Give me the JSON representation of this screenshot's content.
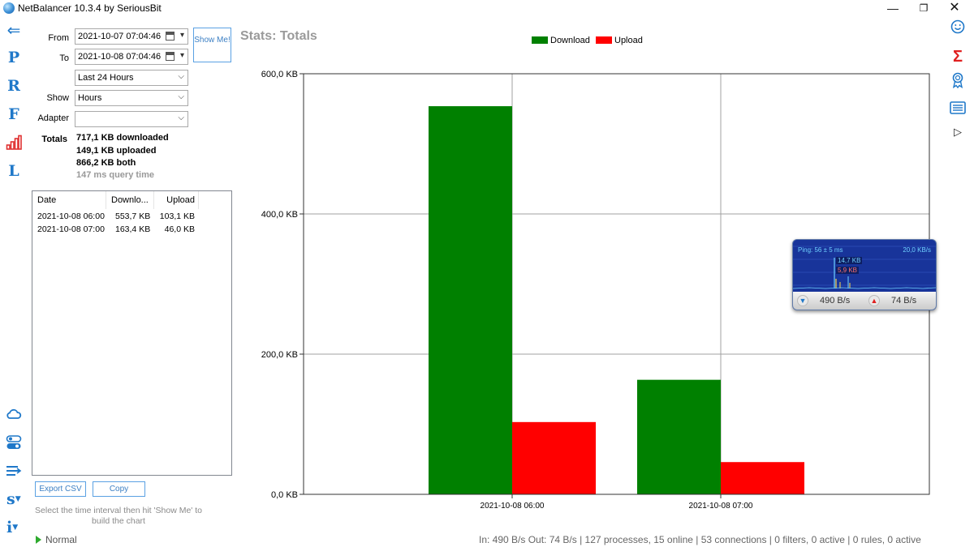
{
  "window": {
    "title": "NetBalancer 10.3.4 by SeriousBit",
    "minimize_glyph": "—",
    "maximize_glyph": "❐",
    "close_glyph": "✕"
  },
  "left_rail": {
    "items": [
      {
        "icon": "back-arrow-icon",
        "glyph": "⇐"
      },
      {
        "icon": "letter-p-icon",
        "glyph": "P"
      },
      {
        "icon": "letter-r-icon",
        "glyph": "R"
      },
      {
        "icon": "letter-f-icon",
        "glyph": "F"
      },
      {
        "icon": "stats-bars-icon",
        "glyph": ""
      },
      {
        "icon": "letter-l-icon",
        "glyph": "L"
      }
    ],
    "bottom_items": [
      {
        "icon": "cloud-icon"
      },
      {
        "icon": "toggle-icon"
      },
      {
        "icon": "filter-lines-icon"
      },
      {
        "icon": "s-menu-icon",
        "glyph": "s"
      },
      {
        "icon": "info-menu-icon",
        "glyph": "i"
      }
    ]
  },
  "right_rail": {
    "items": [
      "smiley-icon",
      "sigma-icon",
      "ribbon-icon",
      "list-icon",
      "play-icon"
    ],
    "sigma_glyph": "Σ",
    "play_glyph": "▷"
  },
  "filters": {
    "from_label": "From",
    "from_value": "2021-10-07 07:04:46",
    "to_label": "To",
    "to_value": "2021-10-08 07:04:46",
    "show_me_label": "Show Me!",
    "range_value": "Last 24 Hours",
    "show_label": "Show",
    "show_value": "Hours",
    "adapter_label": "Adapter",
    "adapter_value": ""
  },
  "totals": {
    "label": "Totals",
    "downloaded": "717,1 KB downloaded",
    "uploaded": "149,1 KB uploaded",
    "both": "866,2 KB both",
    "query_time": "147 ms query time"
  },
  "table": {
    "columns": [
      "Date",
      "Downlo...",
      "Upload"
    ],
    "rows": [
      {
        "date": "2021-10-08 06:00",
        "download": "553,7 KB",
        "upload": "103,1 KB"
      },
      {
        "date": "2021-10-08 07:00",
        "download": "163,4 KB",
        "upload": "46,0 KB"
      }
    ]
  },
  "actions": {
    "export_csv": "Export CSV",
    "copy": "Copy",
    "hint": "Select the time interval then hit 'Show Me' to build the chart"
  },
  "mode": {
    "label": "Normal"
  },
  "chart_title": "Stats: Totals",
  "chart_data": {
    "type": "bar",
    "categories": [
      "2021-10-08 06:00",
      "2021-10-08 07:00"
    ],
    "series": [
      {
        "name": "Download",
        "values": [
          553.7,
          163.4
        ],
        "color": "#008000"
      },
      {
        "name": "Upload",
        "values": [
          103.1,
          46.0
        ],
        "color": "#ff0000"
      }
    ],
    "ylim": [
      0,
      600
    ],
    "yticks": [
      0,
      200,
      400,
      600
    ],
    "ytick_labels": [
      "0,0 KB",
      "200,0 KB",
      "400,0 KB",
      "600,0 KB"
    ],
    "grid": true,
    "legend": "top-center"
  },
  "widget": {
    "ping": "Ping: 56 ± 5 ms",
    "rate": "20,0 KB/s",
    "peak_down": "14,7 KB",
    "peak_up": "5,9 KB",
    "in": "490 B/s",
    "out": "74 B/s",
    "colors": {
      "bg": "#18349a",
      "text": "#6fd0ff",
      "up": "#ff7070"
    }
  },
  "status": {
    "text": "In: 490 B/s  Out: 74 B/s  |  127 processes, 15 online  | 53 connections  | 0 filters, 0 active  | 0 rules, 0 active"
  }
}
